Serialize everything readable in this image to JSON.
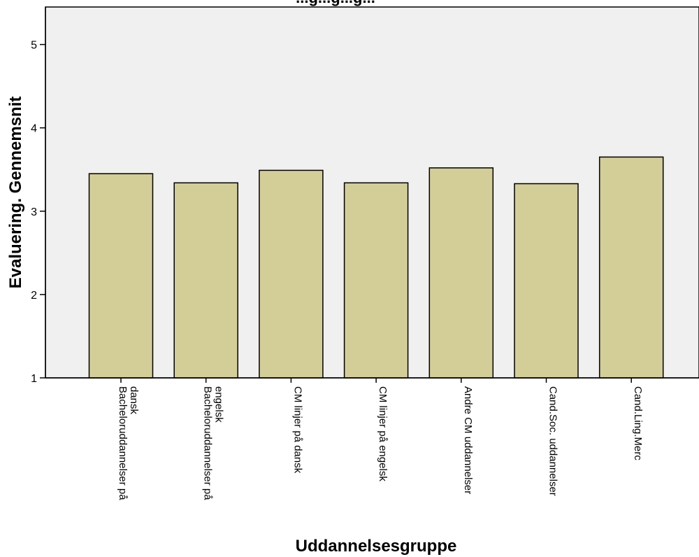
{
  "chart_data": {
    "type": "bar",
    "title": "...g...g...g...",
    "xlabel": "Uddannelsesgruppe",
    "ylabel": "Evaluering. Gennemsnit",
    "categories": [
      "Bacheloruddannelser på dansk",
      "Bacheloruddannelser på engelsk",
      "CM linjer på dansk",
      "CM linjer på engelsk",
      "Andre CM uddannelser",
      "Cand.Soc. uddannelser",
      "Cand.Ling.Merc"
    ],
    "category_label_lines": [
      [
        "Bacheloruddannelser på",
        "dansk"
      ],
      [
        "Bacheloruddannelser på",
        "engelsk"
      ],
      [
        "CM linjer på dansk"
      ],
      [
        "CM linjer på engelsk"
      ],
      [
        "Andre CM uddannelser"
      ],
      [
        "Cand.Soc. uddannelser"
      ],
      [
        "Cand.Ling.Merc"
      ]
    ],
    "values": [
      3.45,
      3.34,
      3.49,
      3.34,
      3.52,
      3.33,
      3.65
    ],
    "ylim": [
      1,
      5.45
    ],
    "yticks": [
      1,
      2,
      3,
      4,
      5
    ],
    "grid": false,
    "colors": {
      "bar_fill": "#d3cd98",
      "bar_stroke": "#000000",
      "plot_bg": "#f0f0f0"
    }
  }
}
